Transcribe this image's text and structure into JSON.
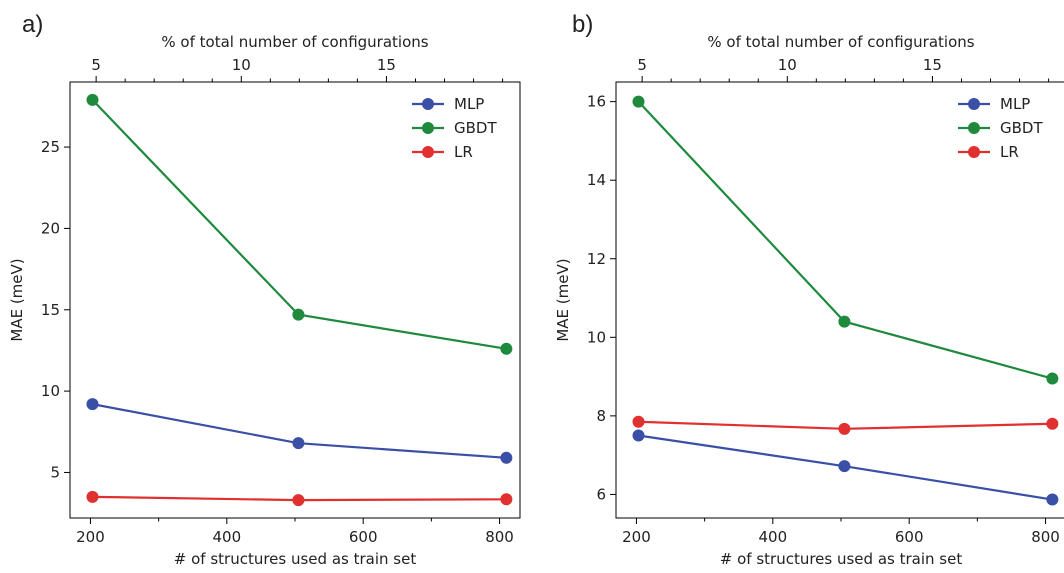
{
  "chart_data": [
    {
      "type": "line",
      "panel_label": "a)",
      "xlabel": "# of structures used as train set",
      "ylabel": "MAE (meV)",
      "top_xlabel": "% of total number of configurations",
      "xlim": [
        170,
        830
      ],
      "ylim": [
        2.2,
        29.0
      ],
      "xticks": [
        200,
        400,
        600,
        800
      ],
      "yticks": [
        5,
        10,
        15,
        20,
        25
      ],
      "top_xlim": [
        4.1,
        19.6
      ],
      "top_xticks": [
        5,
        10,
        15
      ],
      "legend_position": "top-right",
      "x": [
        203,
        505,
        810
      ],
      "series": [
        {
          "name": "MLP",
          "color": "#3a4fa6",
          "values": [
            9.2,
            6.8,
            5.9
          ]
        },
        {
          "name": "GBDT",
          "color": "#1f8a3e",
          "values": [
            27.9,
            14.7,
            12.6
          ]
        },
        {
          "name": "LR",
          "color": "#e0302f",
          "values": [
            3.5,
            3.3,
            3.35
          ]
        }
      ]
    },
    {
      "type": "line",
      "panel_label": "b)",
      "xlabel": "# of structures used as train set",
      "ylabel": "MAE (meV)",
      "top_xlabel": "% of total number of configurations",
      "xlim": [
        170,
        830
      ],
      "ylim": [
        5.4,
        16.5
      ],
      "xticks": [
        200,
        400,
        600,
        800
      ],
      "yticks": [
        6,
        8,
        10,
        12,
        14,
        16
      ],
      "top_xlim": [
        4.1,
        19.6
      ],
      "top_xticks": [
        5,
        10,
        15
      ],
      "legend_position": "top-right",
      "x": [
        203,
        505,
        810
      ],
      "series": [
        {
          "name": "MLP",
          "color": "#3a4fa6",
          "values": [
            7.5,
            6.72,
            5.87
          ]
        },
        {
          "name": "GBDT",
          "color": "#1f8a3e",
          "values": [
            16.0,
            10.4,
            8.95
          ]
        },
        {
          "name": "LR",
          "color": "#e0302f",
          "values": [
            7.85,
            7.67,
            7.8
          ]
        }
      ]
    }
  ]
}
